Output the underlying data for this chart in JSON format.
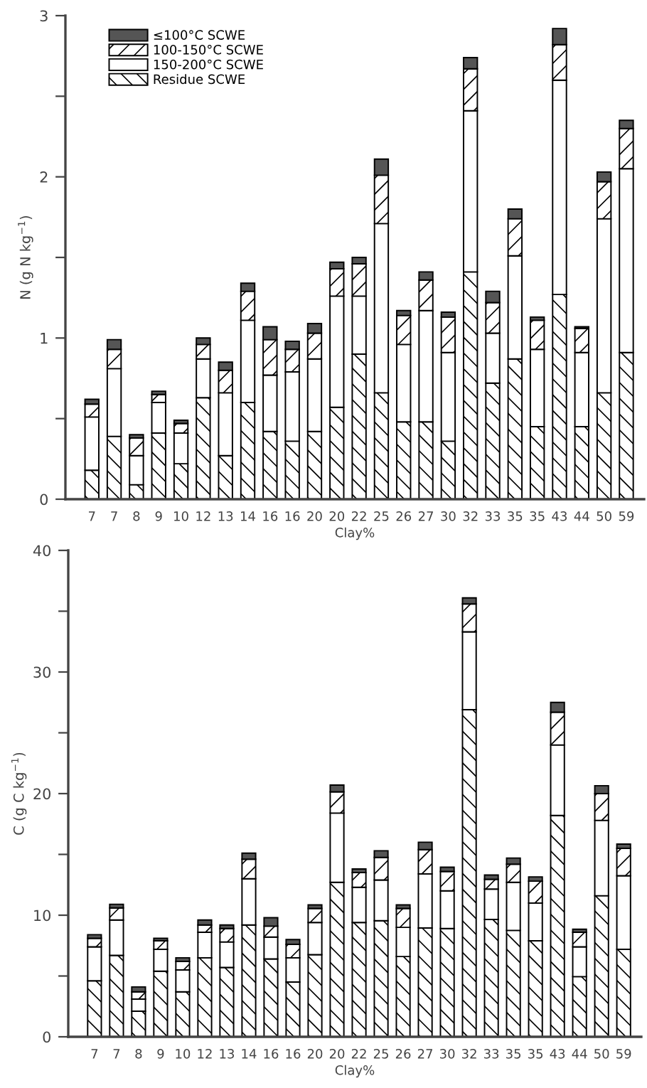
{
  "chart_data": [
    {
      "type": "bar",
      "stacked": true,
      "xlabel": "Clay%",
      "ylabel": "N (g N kg$^{−1}$)",
      "categories": [
        "7",
        "7",
        "8",
        "9",
        "10",
        "12",
        "13",
        "14",
        "16",
        "16",
        "20",
        "20",
        "22",
        "25",
        "26",
        "27",
        "30",
        "32",
        "33",
        "35",
        "35",
        "43",
        "44",
        "50",
        "59"
      ],
      "ylim": [
        0,
        3
      ],
      "yticks": [
        0,
        {
          "value": 0.5,
          "label": null
        },
        1,
        {
          "value": 1.5,
          "label": null
        },
        2,
        {
          "value": 2.5,
          "label": null
        },
        3
      ],
      "legend": "top left",
      "grid": false,
      "series": [
        {
          "name": "Residue SCWE",
          "color": "#000000",
          "values": [
            0.18,
            0.39,
            0.09,
            0.41,
            0.22,
            0.63,
            0.27,
            0.6,
            0.42,
            0.36,
            0.42,
            0.57,
            0.9,
            0.66,
            0.48,
            0.48,
            0.36,
            1.41,
            0.72,
            0.87,
            0.45,
            1.27,
            0.45,
            0.66,
            0.91
          ]
        },
        {
          "name": "150-200°C SCWE",
          "color": "#ffffff",
          "values": [
            0.33,
            0.42,
            0.18,
            0.19,
            0.19,
            0.24,
            0.39,
            0.51,
            0.35,
            0.43,
            0.45,
            0.69,
            0.36,
            1.05,
            0.48,
            0.69,
            0.55,
            1.0,
            0.31,
            0.64,
            0.48,
            1.33,
            0.46,
            1.08,
            1.14
          ]
        },
        {
          "name": "100-150°C SCWE",
          "color": "#000000",
          "values": [
            0.08,
            0.12,
            0.11,
            0.05,
            0.06,
            0.09,
            0.14,
            0.18,
            0.22,
            0.14,
            0.16,
            0.17,
            0.2,
            0.3,
            0.18,
            0.19,
            0.22,
            0.26,
            0.19,
            0.23,
            0.18,
            0.22,
            0.15,
            0.23,
            0.25
          ]
        },
        {
          "name": "≤100°C SCWE",
          "color": "#555555",
          "values": [
            0.03,
            0.06,
            0.02,
            0.02,
            0.02,
            0.04,
            0.05,
            0.05,
            0.08,
            0.05,
            0.06,
            0.04,
            0.04,
            0.1,
            0.03,
            0.05,
            0.03,
            0.07,
            0.07,
            0.06,
            0.02,
            0.1,
            0.01,
            0.06,
            0.05
          ]
        }
      ]
    },
    {
      "type": "bar",
      "stacked": true,
      "xlabel": "Clay%",
      "ylabel": "C (g C kg$^{−1}$)",
      "categories": [
        "7",
        "7",
        "8",
        "9",
        "10",
        "12",
        "13",
        "14",
        "16",
        "16",
        "20",
        "20",
        "22",
        "25",
        "26",
        "27",
        "30",
        "32",
        "33",
        "35",
        "35",
        "43",
        "44",
        "50",
        "59"
      ],
      "ylim": [
        0,
        40
      ],
      "yticks": [
        0,
        {
          "value": 5,
          "label": null
        },
        10,
        {
          "value": 15,
          "label": null
        },
        20,
        {
          "value": 25,
          "label": null
        },
        30,
        {
          "value": 35,
          "label": null
        },
        40
      ],
      "legend": false,
      "grid": false,
      "series": [
        {
          "color": "#000000",
          "values": [
            4.6,
            6.7,
            2.1,
            5.4,
            3.7,
            6.5,
            5.7,
            9.2,
            6.4,
            4.5,
            6.75,
            12.7,
            9.4,
            9.55,
            6.6,
            8.95,
            8.9,
            26.9,
            9.65,
            8.75,
            7.9,
            18.2,
            4.95,
            11.6,
            7.2
          ]
        },
        {
          "color": "#ffffff",
          "values": [
            2.8,
            2.9,
            1.0,
            1.8,
            1.8,
            2.1,
            2.1,
            3.8,
            1.8,
            2.0,
            2.65,
            5.7,
            2.9,
            3.35,
            2.4,
            4.45,
            3.1,
            6.4,
            2.5,
            3.95,
            3.1,
            5.8,
            2.45,
            6.2,
            6.05
          ]
        },
        {
          "color": "#000000",
          "values": [
            0.7,
            1.0,
            0.6,
            0.7,
            0.7,
            0.6,
            1.1,
            1.6,
            0.9,
            1.1,
            1.15,
            1.75,
            1.2,
            1.85,
            1.55,
            2.0,
            1.6,
            2.3,
            0.8,
            1.5,
            1.8,
            2.7,
            1.2,
            2.2,
            2.25
          ]
        },
        {
          "color": "#555555",
          "values": [
            0.3,
            0.3,
            0.4,
            0.2,
            0.3,
            0.4,
            0.3,
            0.5,
            0.7,
            0.4,
            0.3,
            0.55,
            0.3,
            0.55,
            0.3,
            0.6,
            0.35,
            0.5,
            0.35,
            0.5,
            0.35,
            0.8,
            0.25,
            0.65,
            0.35
          ]
        }
      ]
    }
  ]
}
